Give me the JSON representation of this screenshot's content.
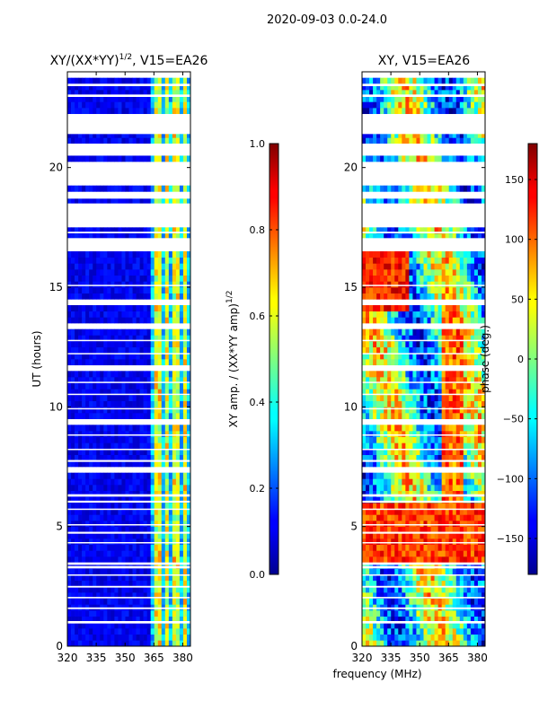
{
  "chart_data": {
    "type": "heatmap",
    "suptitle": "2020-09-03 0.0-24.0",
    "xlabel": "frequency (MHz)",
    "ylabel": "UT (hours)",
    "panels": [
      {
        "title_main": "XY/(XX*YY)",
        "title_sup": "1/2",
        "title_tail": ", V15=EA26",
        "xlim": [
          320,
          384
        ],
        "ylim": [
          0,
          24
        ],
        "xticks": [
          "320",
          "335",
          "350",
          "365",
          "380"
        ],
        "xtick_values": [
          320,
          335,
          350,
          365,
          380
        ],
        "yticks": [
          "0",
          "5",
          "10",
          "15",
          "20"
        ],
        "ytick_values": [
          0,
          5,
          10,
          15,
          20
        ],
        "colormap": "jet",
        "quantity": "amplitude",
        "flagged_hours": [
          [
            0.95,
            1.05
          ],
          [
            1.55,
            1.62
          ],
          [
            2.0,
            2.06
          ],
          [
            2.45,
            2.52
          ],
          [
            2.95,
            3.0
          ],
          [
            3.25,
            3.35
          ],
          [
            3.4,
            3.5
          ],
          [
            4.3,
            4.35
          ],
          [
            4.7,
            4.78
          ],
          [
            5.05,
            5.1
          ],
          [
            5.7,
            5.75
          ],
          [
            6.0,
            6.08
          ],
          [
            6.25,
            6.35
          ],
          [
            7.3,
            7.38
          ],
          [
            7.7,
            7.78
          ],
          [
            8.2,
            8.25
          ],
          [
            8.8,
            8.85
          ],
          [
            9.35,
            9.42
          ],
          [
            9.9,
            9.95
          ],
          [
            10.5,
            10.55
          ],
          [
            11.0,
            11.05
          ],
          [
            11.6,
            11.65
          ],
          [
            12.2,
            12.25
          ],
          [
            12.75,
            12.8
          ],
          [
            13.3,
            13.38
          ],
          [
            14.3,
            14.38
          ],
          [
            15.05,
            15.1
          ],
          [
            16.6,
            17.05
          ],
          [
            17.25,
            17.32
          ],
          [
            17.6,
            17.9
          ],
          [
            18.1,
            18.5
          ],
          [
            18.7,
            18.95
          ],
          [
            19.3,
            20.2
          ],
          [
            20.5,
            21.0
          ],
          [
            21.4,
            22.2
          ],
          [
            22.95,
            23.05
          ],
          [
            23.4,
            23.5
          ],
          [
            23.85,
            23.95
          ]
        ]
      },
      {
        "title": "XY, V15=EA26",
        "xlim": [
          320,
          384
        ],
        "ylim": [
          0,
          24
        ],
        "xticks": [
          "320",
          "335",
          "350",
          "365",
          "380"
        ],
        "xtick_values": [
          320,
          335,
          350,
          365,
          380
        ],
        "yticks": [
          "0",
          "5",
          "10",
          "15",
          "20"
        ],
        "ytick_values": [
          0,
          5,
          10,
          15,
          20
        ],
        "colormap": "jet",
        "quantity": "phase",
        "flagged_hours": [
          [
            0.95,
            1.05
          ],
          [
            1.55,
            1.62
          ],
          [
            2.0,
            2.06
          ],
          [
            2.45,
            2.52
          ],
          [
            2.95,
            3.0
          ],
          [
            3.25,
            3.35
          ],
          [
            3.4,
            3.5
          ],
          [
            4.3,
            4.35
          ],
          [
            4.7,
            4.78
          ],
          [
            5.05,
            5.1
          ],
          [
            5.7,
            5.75
          ],
          [
            6.0,
            6.08
          ],
          [
            6.25,
            6.35
          ],
          [
            7.3,
            7.38
          ],
          [
            7.7,
            7.78
          ],
          [
            8.2,
            8.25
          ],
          [
            8.8,
            8.85
          ],
          [
            9.35,
            9.42
          ],
          [
            9.9,
            9.95
          ],
          [
            10.5,
            10.55
          ],
          [
            11.0,
            11.05
          ],
          [
            11.6,
            11.65
          ],
          [
            12.2,
            12.25
          ],
          [
            12.75,
            12.8
          ],
          [
            13.3,
            13.38
          ],
          [
            14.3,
            14.38
          ],
          [
            15.05,
            15.1
          ],
          [
            16.6,
            17.05
          ],
          [
            17.25,
            17.32
          ],
          [
            17.6,
            17.9
          ],
          [
            18.1,
            18.5
          ],
          [
            18.7,
            18.95
          ],
          [
            19.3,
            20.2
          ],
          [
            20.5,
            21.0
          ],
          [
            21.4,
            22.2
          ],
          [
            22.95,
            23.05
          ],
          [
            23.4,
            23.5
          ],
          [
            23.85,
            23.95
          ]
        ]
      }
    ],
    "colorbars": [
      {
        "label_main": "XY amp. / (XX*YY amp)",
        "label_sup": "1/2",
        "range": [
          0.0,
          1.0
        ],
        "ticks": [
          "0.0",
          "0.2",
          "0.4",
          "0.6",
          "0.8",
          "1.0"
        ],
        "tick_values": [
          0.0,
          0.2,
          0.4,
          0.6,
          0.8,
          1.0
        ]
      },
      {
        "label": "phase (deg.)",
        "range": [
          -180,
          180
        ],
        "ticks": [
          "−150",
          "−100",
          "−50",
          "0",
          "50",
          "100",
          "150"
        ],
        "tick_values": [
          -150,
          -100,
          -50,
          0,
          50,
          100,
          150
        ]
      }
    ]
  }
}
